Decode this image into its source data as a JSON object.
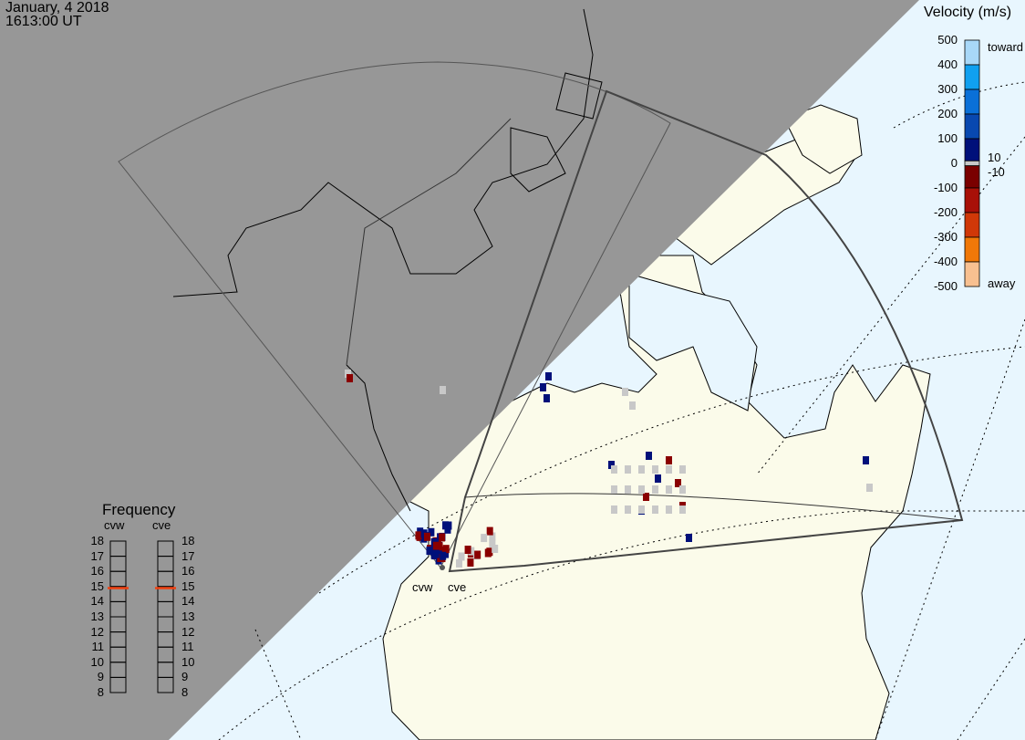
{
  "header": {
    "date": "January, 4 2018",
    "time": "1613:00 UT"
  },
  "velocity_scale": {
    "title": "Velocity (m/s)",
    "ticks": [
      "500",
      "400",
      "300",
      "200",
      "100",
      "0",
      "-100",
      "-200",
      "-300",
      "-400",
      "-500"
    ],
    "toward_label": "toward",
    "away_label": "away",
    "inner_labels": [
      "10",
      "-10"
    ],
    "colors": [
      "#a8d8f8",
      "#10a0f0",
      "#0a70d8",
      "#0848b0",
      "#00107a",
      "#c8c8c8",
      "#7a0000",
      "#a81008",
      "#d03808",
      "#f07808",
      "#f8c090"
    ]
  },
  "frequency": {
    "title": "Frequency",
    "radars": [
      {
        "name": "cvw",
        "value_mhz": 14.9
      },
      {
        "name": "cve",
        "value_mhz": 14.9
      }
    ],
    "ticks": [
      "18",
      "17",
      "16",
      "15",
      "14",
      "13",
      "12",
      "11",
      "10",
      "9",
      "8"
    ],
    "marker_color": "#f04010"
  },
  "radar_labels": [
    "cvw",
    "cve"
  ],
  "colors": {
    "night": "#979797",
    "day_ocean": "#e8f6fe",
    "day_land": "#fbfbea",
    "ground_scatter": "#c8c8c8"
  }
}
